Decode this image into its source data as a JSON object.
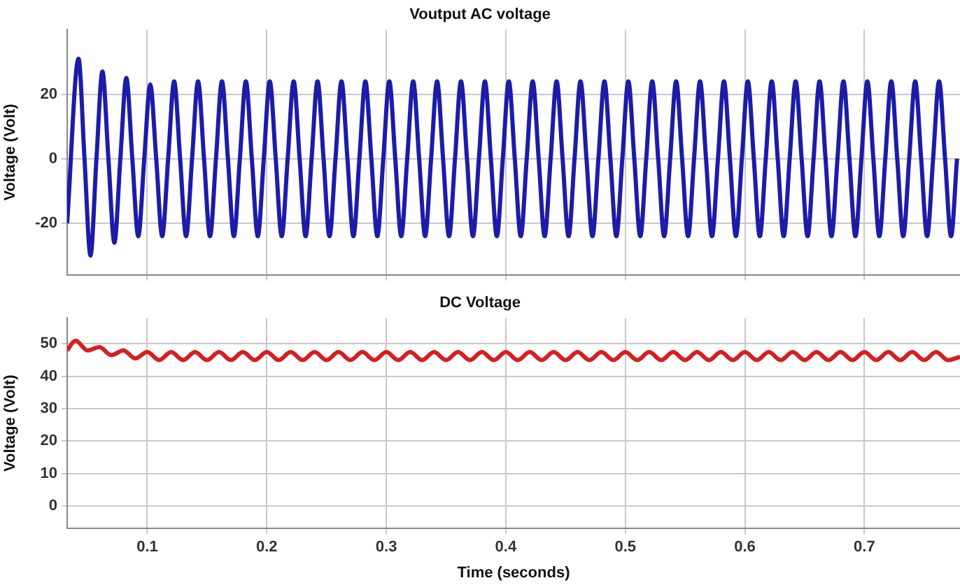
{
  "chart_data": [
    {
      "type": "line",
      "title": "Voutput AC voltage",
      "ylabel": "Voltage (Volt)",
      "tick_labels": "y",
      "grid": true,
      "x": [
        0.033,
        0.0425,
        0.0475,
        0.0525,
        0.0575,
        0.0625,
        0.0675,
        0.0725,
        0.0775,
        0.0825,
        0.0875,
        0.0925,
        0.0975,
        0.1025,
        0.1075,
        0.1125,
        0.1175,
        0.1225,
        0.1275,
        0.1325,
        0.1375,
        0.1425,
        0.1475,
        0.1525,
        0.1575,
        0.1625,
        0.1675,
        0.1725,
        0.1775,
        0.1825,
        0.1875,
        0.1925,
        0.1975,
        0.2025,
        0.2075,
        0.2125,
        0.2175,
        0.2225,
        0.2275,
        0.2325,
        0.2375,
        0.2425,
        0.2475,
        0.2525,
        0.2575,
        0.2625,
        0.2675,
        0.2725,
        0.2775,
        0.2825,
        0.2875,
        0.2925,
        0.2975,
        0.3025,
        0.3075,
        0.3125,
        0.3175,
        0.3225,
        0.3275,
        0.3325,
        0.3375,
        0.3425,
        0.3475,
        0.3525,
        0.3575,
        0.3625,
        0.3675,
        0.3725,
        0.3775,
        0.3825,
        0.3875,
        0.3925,
        0.3975,
        0.4025,
        0.4075,
        0.4125,
        0.4175,
        0.4225,
        0.4275,
        0.4325,
        0.4375,
        0.4425,
        0.4475,
        0.4525,
        0.4575,
        0.4625,
        0.4675,
        0.4725,
        0.4775,
        0.4825,
        0.4875,
        0.4925,
        0.4975,
        0.5025,
        0.5075,
        0.5125,
        0.5175,
        0.5225,
        0.5275,
        0.5325,
        0.5375,
        0.5425,
        0.5475,
        0.5525,
        0.5575,
        0.5625,
        0.5675,
        0.5725,
        0.5775,
        0.5825,
        0.5875,
        0.5925,
        0.5975,
        0.6025,
        0.6075,
        0.6125,
        0.6175,
        0.6225,
        0.6275,
        0.6325,
        0.6375,
        0.6425,
        0.6475,
        0.6525,
        0.6575,
        0.6625,
        0.6675,
        0.6725,
        0.6775,
        0.6825,
        0.6875,
        0.6925,
        0.6975,
        0.7025,
        0.7075,
        0.7125,
        0.7175,
        0.7225,
        0.7275,
        0.7325,
        0.7375,
        0.7425,
        0.7475,
        0.7525,
        0.7575,
        0.7625,
        0.7675,
        0.7725,
        0.7775
      ],
      "series": [
        {
          "color": "#1c1ca8",
          "values": [
            -20,
            31,
            0,
            -30,
            0,
            27,
            0,
            -26,
            0,
            25,
            0,
            -24,
            0,
            23,
            0,
            -24,
            0,
            24,
            0,
            -24,
            0,
            24,
            0,
            -24,
            0,
            24,
            0,
            -24,
            0,
            24,
            0,
            -24,
            0,
            24,
            0,
            -24,
            0,
            24,
            0,
            -24,
            0,
            24,
            0,
            -24,
            0,
            24,
            0,
            -24,
            0,
            24,
            0,
            -24,
            0,
            24,
            0,
            -24,
            0,
            24,
            0,
            -24,
            0,
            24,
            0,
            -24,
            0,
            24,
            0,
            -24,
            0,
            24,
            0,
            -24,
            0,
            24,
            0,
            -24,
            0,
            24,
            0,
            -24,
            0,
            24,
            0,
            -24,
            0,
            24,
            0,
            -24,
            0,
            24,
            0,
            -24,
            0,
            24,
            0,
            -24,
            0,
            24,
            0,
            -24,
            0,
            24,
            0,
            -24,
            0,
            24,
            0,
            -24,
            0,
            24,
            0,
            -24,
            0,
            24,
            0,
            -24,
            0,
            24,
            0,
            -24,
            0,
            24,
            0,
            -24,
            0,
            24,
            0,
            -24,
            0,
            24,
            0,
            -24,
            0,
            24,
            0,
            -24,
            0,
            24,
            0,
            -24,
            0,
            24,
            0,
            -24,
            0,
            24,
            0,
            -24,
            0
          ]
        }
      ],
      "xlim": [
        0.033,
        0.78
      ],
      "xticks": [
        0.1,
        0.2,
        0.3,
        0.4,
        0.5,
        0.6,
        0.7
      ],
      "ylim": [
        -36,
        40
      ],
      "yticks": [
        -20,
        0,
        20
      ]
    },
    {
      "type": "line",
      "title": "DC Voltage",
      "ylabel": "Voltage (Volt)",
      "xlabel": "Time (seconds)",
      "grid": true,
      "x": [
        0.033,
        0.04,
        0.05,
        0.06,
        0.07,
        0.08,
        0.09,
        0.1,
        0.11,
        0.12,
        0.13,
        0.14,
        0.15,
        0.16,
        0.17,
        0.18,
        0.19,
        0.2,
        0.21,
        0.22,
        0.23,
        0.24,
        0.25,
        0.26,
        0.27,
        0.28,
        0.29,
        0.3,
        0.31,
        0.32,
        0.33,
        0.34,
        0.35,
        0.36,
        0.37,
        0.38,
        0.39,
        0.4,
        0.41,
        0.42,
        0.43,
        0.44,
        0.45,
        0.46,
        0.47,
        0.48,
        0.49,
        0.5,
        0.51,
        0.52,
        0.53,
        0.54,
        0.55,
        0.56,
        0.57,
        0.58,
        0.59,
        0.6,
        0.61,
        0.62,
        0.63,
        0.64,
        0.65,
        0.66,
        0.67,
        0.68,
        0.69,
        0.7,
        0.71,
        0.72,
        0.73,
        0.74,
        0.75,
        0.76,
        0.77,
        0.78
      ],
      "series": [
        {
          "color": "#d42020",
          "values": [
            48,
            51,
            48,
            49,
            46.5,
            48,
            45.5,
            47.5,
            45,
            47.5,
            45,
            47.5,
            45,
            47.5,
            45,
            47.5,
            45,
            47.5,
            45,
            47.5,
            45,
            47.5,
            45,
            47.5,
            45,
            47.5,
            45,
            47.5,
            45,
            47.5,
            45,
            47.5,
            45,
            47.5,
            45,
            47.5,
            45,
            47.5,
            45,
            47.5,
            45,
            47.5,
            45,
            47.5,
            45,
            47.5,
            45,
            47.5,
            45,
            47.5,
            45,
            47.5,
            45,
            47.5,
            45,
            47.5,
            45,
            47.5,
            45,
            47.5,
            45,
            47.5,
            45,
            47.5,
            45,
            47.5,
            45,
            47.5,
            45,
            47.5,
            45,
            47.5,
            45,
            47.5,
            45,
            46
          ]
        }
      ],
      "xlim": [
        0.033,
        0.78
      ],
      "xticks": [
        0.1,
        0.2,
        0.3,
        0.4,
        0.5,
        0.6,
        0.7
      ],
      "ylim": [
        -7,
        58
      ],
      "yticks": [
        0,
        10,
        20,
        30,
        40,
        50
      ]
    }
  ]
}
